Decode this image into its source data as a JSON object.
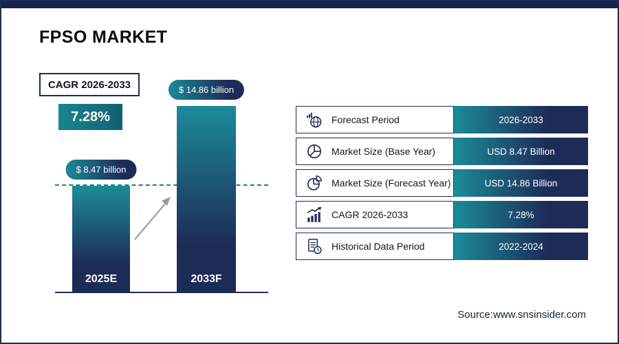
{
  "page": {
    "title": "FPSO MARKET",
    "source": "Source:www.snsinsider.com"
  },
  "cagr": {
    "label": "CAGR 2026-2033",
    "value": "7.28%"
  },
  "chart_data": {
    "type": "bar",
    "title": "FPSO MARKET",
    "categories": [
      "2025E",
      "2033F"
    ],
    "values": [
      8.47,
      14.86
    ],
    "value_labels": [
      "$ 8.47 billion",
      "$ 14.86 billion"
    ],
    "unit": "USD Billion",
    "ylim": [
      0,
      16
    ],
    "grid": false,
    "annotations": [
      "dashed reference line at 2025E bar top level",
      "gray growth arrow between bars"
    ],
    "bar_gradient": [
      "#1c8b99",
      "#1d2b57"
    ]
  },
  "table": {
    "rows": [
      {
        "icon": "globe-growth-icon",
        "label": "Forecast Period",
        "value": "2026-2033"
      },
      {
        "icon": "pie-chart-icon",
        "label": "Market Size (Base Year)",
        "value": "USD 8.47 Billion"
      },
      {
        "icon": "pie-chart-exploded-icon",
        "label": "Market Size (Forecast Year)",
        "value": "USD 14.86 Billion"
      },
      {
        "icon": "bar-growth-icon",
        "label": "CAGR 2026-2033",
        "value": "7.28%"
      },
      {
        "icon": "document-clock-icon",
        "label": "Historical Data Period",
        "value": "2022-2024"
      }
    ]
  },
  "colors": {
    "navy": "#1d2b57",
    "teal": "#1c8b99",
    "arrow_gray": "#8f9aa3"
  }
}
